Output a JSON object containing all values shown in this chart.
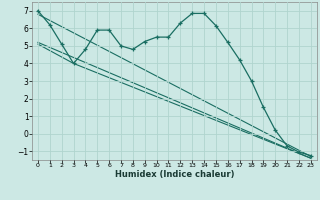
{
  "xlabel": "Humidex (Indice chaleur)",
  "background_color": "#cce8e4",
  "grid_color": "#b0d4ce",
  "line_color": "#1a6e62",
  "xlim": [
    -0.5,
    23.5
  ],
  "ylim": [
    -1.5,
    7.5
  ],
  "yticks": [
    -1,
    0,
    1,
    2,
    3,
    4,
    5,
    6,
    7
  ],
  "xticks": [
    0,
    1,
    2,
    3,
    4,
    5,
    6,
    7,
    8,
    9,
    10,
    11,
    12,
    13,
    14,
    15,
    16,
    17,
    18,
    19,
    20,
    21,
    22,
    23
  ],
  "line1_x": [
    0,
    1,
    2,
    3,
    4,
    5,
    6,
    7,
    8,
    9,
    10,
    11,
    12,
    13,
    14,
    15,
    16,
    17,
    18,
    19,
    20,
    21,
    22,
    23
  ],
  "line1_y": [
    7.0,
    6.2,
    5.1,
    4.0,
    4.8,
    5.9,
    5.9,
    5.0,
    4.8,
    5.25,
    5.5,
    5.5,
    6.3,
    6.85,
    6.85,
    6.15,
    5.2,
    4.2,
    3.0,
    1.5,
    0.2,
    -0.7,
    -1.05,
    -1.25
  ],
  "line2_x": [
    0,
    23
  ],
  "line2_y": [
    6.8,
    -1.3
  ],
  "line3_x": [
    0,
    23
  ],
  "line3_y": [
    5.2,
    -1.4
  ],
  "line4_x": [
    0,
    3,
    23
  ],
  "line4_y": [
    5.1,
    4.0,
    -1.4
  ]
}
